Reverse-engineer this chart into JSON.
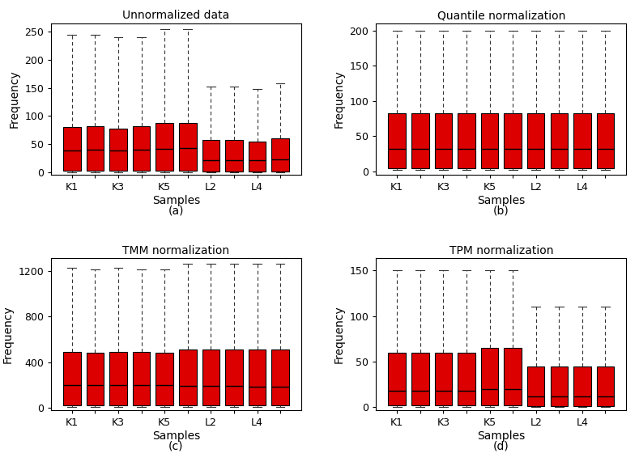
{
  "panels": [
    {
      "title": "Unnormalized data",
      "label": "(a)",
      "ylabel": "Frequency",
      "xlabel": "Samples",
      "ylim": [
        -5,
        265
      ],
      "yticks": [
        0,
        50,
        100,
        150,
        200,
        250
      ],
      "xtick_labels": [
        "K1",
        "",
        "K3",
        "",
        "K5",
        "",
        "L2",
        "",
        "L4",
        ""
      ],
      "boxes": [
        {
          "whislo": 0,
          "q1": 3,
          "med": 38,
          "q3": 80,
          "whishi": 245
        },
        {
          "whislo": 0,
          "q1": 3,
          "med": 40,
          "q3": 82,
          "whishi": 245
        },
        {
          "whislo": 0,
          "q1": 3,
          "med": 38,
          "q3": 78,
          "whishi": 240
        },
        {
          "whislo": 0,
          "q1": 3,
          "med": 40,
          "q3": 82,
          "whishi": 240
        },
        {
          "whislo": 0,
          "q1": 3,
          "med": 42,
          "q3": 88,
          "whishi": 255
        },
        {
          "whislo": 0,
          "q1": 3,
          "med": 43,
          "q3": 88,
          "whishi": 255
        },
        {
          "whislo": 0,
          "q1": 1,
          "med": 22,
          "q3": 58,
          "whishi": 152
        },
        {
          "whislo": 0,
          "q1": 1,
          "med": 22,
          "q3": 58,
          "whishi": 152
        },
        {
          "whislo": 0,
          "q1": 1,
          "med": 22,
          "q3": 55,
          "whishi": 148
        },
        {
          "whislo": 0,
          "q1": 1,
          "med": 23,
          "q3": 60,
          "whishi": 158
        }
      ]
    },
    {
      "title": "Quantile normalization",
      "label": "(b)",
      "ylabel": "Frequency",
      "xlabel": "Samples",
      "ylim": [
        -5,
        210
      ],
      "yticks": [
        0,
        50,
        100,
        150,
        200
      ],
      "xtick_labels": [
        "K1",
        "",
        "K3",
        "",
        "K5",
        "",
        "L2",
        "",
        "L4",
        ""
      ],
      "boxes": [
        {
          "whislo": 2,
          "q1": 5,
          "med": 32,
          "q3": 83,
          "whishi": 200
        },
        {
          "whislo": 2,
          "q1": 5,
          "med": 32,
          "q3": 83,
          "whishi": 200
        },
        {
          "whislo": 2,
          "q1": 5,
          "med": 32,
          "q3": 83,
          "whishi": 200
        },
        {
          "whislo": 2,
          "q1": 5,
          "med": 32,
          "q3": 83,
          "whishi": 200
        },
        {
          "whislo": 2,
          "q1": 5,
          "med": 32,
          "q3": 83,
          "whishi": 200
        },
        {
          "whislo": 2,
          "q1": 5,
          "med": 32,
          "q3": 83,
          "whishi": 200
        },
        {
          "whislo": 2,
          "q1": 5,
          "med": 32,
          "q3": 83,
          "whishi": 200
        },
        {
          "whislo": 2,
          "q1": 5,
          "med": 32,
          "q3": 83,
          "whishi": 200
        },
        {
          "whislo": 2,
          "q1": 5,
          "med": 32,
          "q3": 83,
          "whishi": 200
        },
        {
          "whislo": 2,
          "q1": 5,
          "med": 32,
          "q3": 83,
          "whishi": 200
        }
      ]
    },
    {
      "title": "TMM normalization",
      "label": "(c)",
      "ylabel": "Frequency",
      "xlabel": "Samples",
      "ylim": [
        -20,
        1310
      ],
      "yticks": [
        0,
        400,
        800,
        1200
      ],
      "xtick_labels": [
        "K1",
        "",
        "K3",
        "",
        "K5",
        "",
        "L2",
        "",
        "L4",
        ""
      ],
      "boxes": [
        {
          "whislo": 5,
          "q1": 20,
          "med": 200,
          "q3": 490,
          "whishi": 1230
        },
        {
          "whislo": 5,
          "q1": 20,
          "med": 200,
          "q3": 480,
          "whishi": 1210
        },
        {
          "whislo": 5,
          "q1": 20,
          "med": 200,
          "q3": 490,
          "whishi": 1230
        },
        {
          "whislo": 5,
          "q1": 20,
          "med": 200,
          "q3": 490,
          "whishi": 1210
        },
        {
          "whislo": 5,
          "q1": 20,
          "med": 200,
          "q3": 485,
          "whishi": 1210
        },
        {
          "whislo": 5,
          "q1": 20,
          "med": 190,
          "q3": 510,
          "whishi": 1265
        },
        {
          "whislo": 5,
          "q1": 20,
          "med": 190,
          "q3": 510,
          "whishi": 1265
        },
        {
          "whislo": 5,
          "q1": 20,
          "med": 190,
          "q3": 510,
          "whishi": 1265
        },
        {
          "whislo": 5,
          "q1": 20,
          "med": 185,
          "q3": 510,
          "whishi": 1265
        },
        {
          "whislo": 5,
          "q1": 20,
          "med": 185,
          "q3": 510,
          "whishi": 1265
        }
      ]
    },
    {
      "title": "TPM normalization",
      "label": "(d)",
      "ylabel": "Frequency",
      "xlabel": "Samples",
      "ylim": [
        -3,
        163
      ],
      "yticks": [
        0,
        50,
        100,
        150
      ],
      "xtick_labels": [
        "K1",
        "",
        "K3",
        "",
        "K5",
        "",
        "L2",
        "",
        "L4",
        ""
      ],
      "boxes": [
        {
          "whislo": 0,
          "q1": 2,
          "med": 18,
          "q3": 60,
          "whishi": 150
        },
        {
          "whislo": 0,
          "q1": 2,
          "med": 18,
          "q3": 60,
          "whishi": 150
        },
        {
          "whislo": 0,
          "q1": 2,
          "med": 18,
          "q3": 60,
          "whishi": 150
        },
        {
          "whislo": 0,
          "q1": 2,
          "med": 18,
          "q3": 60,
          "whishi": 150
        },
        {
          "whislo": 0,
          "q1": 2,
          "med": 20,
          "q3": 65,
          "whishi": 150
        },
        {
          "whislo": 0,
          "q1": 2,
          "med": 20,
          "q3": 65,
          "whishi": 150
        },
        {
          "whislo": 0,
          "q1": 1,
          "med": 12,
          "q3": 45,
          "whishi": 110
        },
        {
          "whislo": 0,
          "q1": 1,
          "med": 12,
          "q3": 45,
          "whishi": 110
        },
        {
          "whislo": 0,
          "q1": 1,
          "med": 12,
          "q3": 45,
          "whishi": 110
        },
        {
          "whislo": 0,
          "q1": 1,
          "med": 12,
          "q3": 45,
          "whishi": 110
        }
      ]
    }
  ],
  "box_color": "#dd0000",
  "box_edgecolor": "#000000",
  "median_color": "#000000",
  "whisker_color": "#333333",
  "background_color": "#ffffff",
  "title_fontsize": 10,
  "label_fontsize": 10,
  "tick_fontsize": 9,
  "sublabel_fontsize": 10
}
